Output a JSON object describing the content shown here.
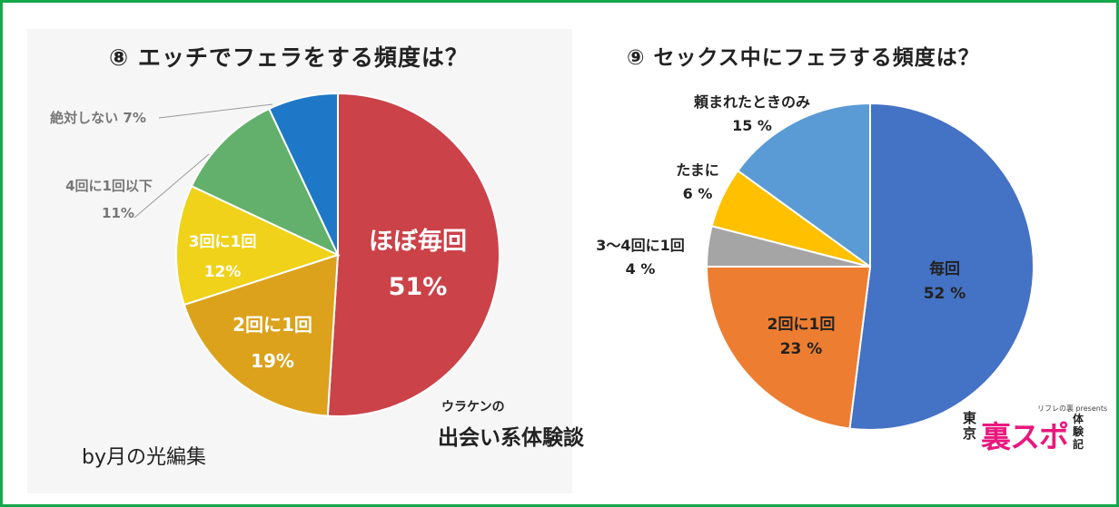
{
  "left_chart": {
    "title": "⑧ エッチでフェラをする頻度は？",
    "branding_small": "ウラケンの",
    "branding_big": "出会い系体験談",
    "credit": "by月の光編集"
  },
  "right_chart": {
    "title": "⑨ セックス中にフェラする頻度は？",
    "logo": {
      "top": "リフレの裏 presents",
      "tokyo": "東京",
      "main": "裏スポ",
      "side": "体験記"
    }
  },
  "chart_data": [
    {
      "type": "pie",
      "title": "⑧ エッチでフェラをする頻度は？",
      "slices": [
        {
          "label": "ほぼ毎回",
          "value_label": "51%",
          "value": 51,
          "color": "#cb4249",
          "text_color": "#ffffff"
        },
        {
          "label": "2回に1回",
          "value_label": "19%",
          "value": 19,
          "color": "#dca21c",
          "text_color": "#ffffff"
        },
        {
          "label": "3回に1回",
          "value_label": "12%",
          "value": 12,
          "color": "#efd219",
          "text_color": "#ffffff"
        },
        {
          "label": "4回に1回以下",
          "value_label": "11%",
          "value": 11,
          "color": "#62b06c",
          "text_color": "#777777"
        },
        {
          "label": "絶対しない",
          "value_label": "7%",
          "value": 7,
          "color": "#1e78c7",
          "text_color": "#777777"
        }
      ]
    },
    {
      "type": "pie",
      "title": "⑨ セックス中にフェラする頻度は？",
      "slices": [
        {
          "label": "毎回",
          "value_label": "52 %",
          "value": 52,
          "color": "#4472c4",
          "text_color": "#222222"
        },
        {
          "label": "2回に1回",
          "value_label": "23 %",
          "value": 23,
          "color": "#ed7d31",
          "text_color": "#222222"
        },
        {
          "label": "3～4回に1回",
          "value_label": "4 %",
          "value": 4,
          "color": "#a5a5a5",
          "text_color": "#222222"
        },
        {
          "label": "たまに",
          "value_label": "6 %",
          "value": 6,
          "color": "#ffc000",
          "text_color": "#222222"
        },
        {
          "label": "頼まれたときのみ",
          "value_label": "15 %",
          "value": 15,
          "color": "#5b9bd5",
          "text_color": "#222222"
        }
      ]
    }
  ]
}
